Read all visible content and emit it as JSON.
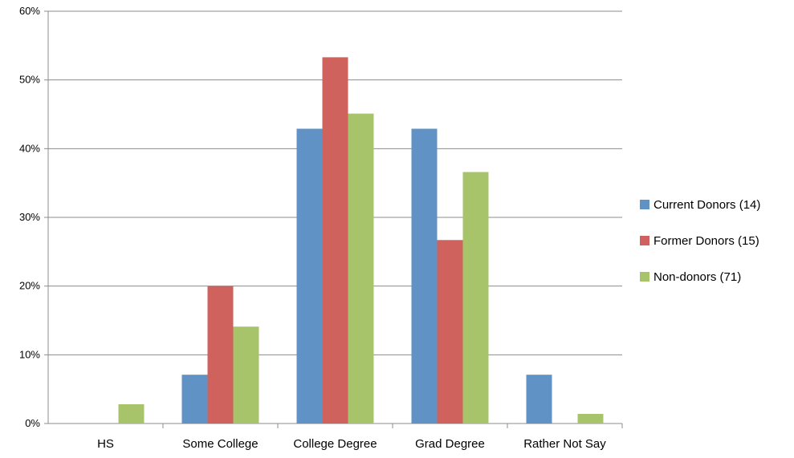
{
  "chart_data": {
    "type": "bar",
    "categories": [
      "HS",
      "Some College",
      "College Degree",
      "Grad Degree",
      "Rather Not Say"
    ],
    "series": [
      {
        "name": "Current Donors (14)",
        "color": "#6092c6",
        "values": [
          0,
          7.1,
          42.9,
          42.9,
          7.1
        ]
      },
      {
        "name": "Former Donors (15)",
        "color": "#cf625c",
        "values": [
          0,
          20.0,
          53.3,
          26.7,
          0
        ]
      },
      {
        "name": "Non-donors (71)",
        "color": "#a8c46b",
        "values": [
          2.8,
          14.1,
          45.1,
          36.6,
          1.4
        ]
      }
    ],
    "y_ticks": [
      "0%",
      "10%",
      "20%",
      "30%",
      "40%",
      "50%",
      "60%"
    ],
    "ylim": [
      0,
      60
    ],
    "grid": true,
    "legend_position": "right"
  }
}
